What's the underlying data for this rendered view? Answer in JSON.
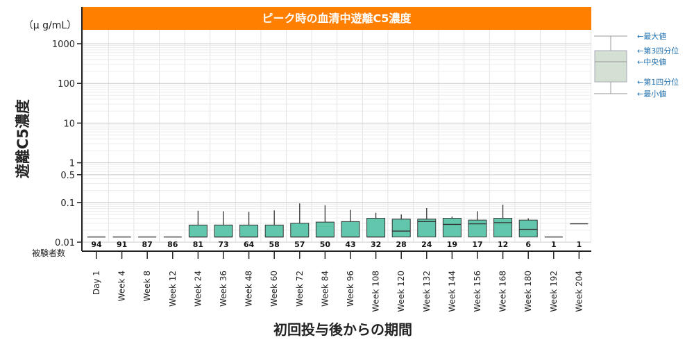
{
  "chart_data": {
    "type": "boxplot",
    "title": "ピーク時の血清中遊離C5濃度",
    "unit": "（μ g/mL）",
    "ylabel": "遊離C5濃度",
    "xlabel": "初回投与後からの期間",
    "y_scale": "log",
    "ylim": [
      0.01,
      3000
    ],
    "yticks": [
      {
        "value": 1000,
        "label": "1000"
      },
      {
        "value": 100,
        "label": "100"
      },
      {
        "value": 10,
        "label": "10"
      },
      {
        "value": 1,
        "label": "1"
      },
      {
        "value": 0.5,
        "label": "0.5"
      },
      {
        "value": 0.1,
        "label": "0.1"
      },
      {
        "value": 0.01,
        "label": "0.01"
      }
    ],
    "count_label": "被験者数",
    "categories": [
      "Day 1",
      "Week 4",
      "Week 8",
      "Week 12",
      "Week 24",
      "Week 36",
      "Week 48",
      "Week 60",
      "Week 72",
      "Week 84",
      "Week 96",
      "Week 108",
      "Week 120",
      "Week 132",
      "Week 144",
      "Week 156",
      "Week 168",
      "Week 180",
      "Week 192",
      "Week 204"
    ],
    "counts": [
      "94",
      "91",
      "87",
      "86",
      "81",
      "73",
      "64",
      "58",
      "57",
      "50",
      "43",
      "32",
      "28",
      "24",
      "19",
      "17",
      "12",
      "6",
      "1",
      "1"
    ],
    "boxes": [
      {
        "min": 0.0135,
        "q1": 0.0135,
        "median": 0.0135,
        "q3": 0.0135,
        "max": 0.0135
      },
      {
        "min": 0.0135,
        "q1": 0.0135,
        "median": 0.0135,
        "q3": 0.0135,
        "max": 0.0135
      },
      {
        "min": 0.0135,
        "q1": 0.0135,
        "median": 0.0135,
        "q3": 0.0135,
        "max": 0.0135
      },
      {
        "min": 0.0135,
        "q1": 0.0135,
        "median": 0.0135,
        "q3": 0.0135,
        "max": 0.0135
      },
      {
        "min": 0.0135,
        "q1": 0.0135,
        "median": 0.0135,
        "q3": 0.027,
        "max": 0.062
      },
      {
        "min": 0.0135,
        "q1": 0.0135,
        "median": 0.0135,
        "q3": 0.027,
        "max": 0.06
      },
      {
        "min": 0.0135,
        "q1": 0.0135,
        "median": 0.0135,
        "q3": 0.027,
        "max": 0.058
      },
      {
        "min": 0.0135,
        "q1": 0.0135,
        "median": 0.0135,
        "q3": 0.027,
        "max": 0.063
      },
      {
        "min": 0.0135,
        "q1": 0.0135,
        "median": 0.0135,
        "q3": 0.03,
        "max": 0.095
      },
      {
        "min": 0.0135,
        "q1": 0.0135,
        "median": 0.0135,
        "q3": 0.032,
        "max": 0.085
      },
      {
        "min": 0.0135,
        "q1": 0.0135,
        "median": 0.0135,
        "q3": 0.033,
        "max": 0.065
      },
      {
        "min": 0.0135,
        "q1": 0.0135,
        "median": 0.0135,
        "q3": 0.04,
        "max": 0.055
      },
      {
        "min": 0.0135,
        "q1": 0.0135,
        "median": 0.019,
        "q3": 0.038,
        "max": 0.05
      },
      {
        "min": 0.0135,
        "q1": 0.0135,
        "median": 0.033,
        "q3": 0.038,
        "max": 0.072
      },
      {
        "min": 0.0135,
        "q1": 0.0135,
        "median": 0.028,
        "q3": 0.04,
        "max": 0.044
      },
      {
        "min": 0.0135,
        "q1": 0.0135,
        "median": 0.029,
        "q3": 0.036,
        "max": 0.06
      },
      {
        "min": 0.0135,
        "q1": 0.0135,
        "median": 0.031,
        "q3": 0.04,
        "max": 0.088
      },
      {
        "min": 0.0135,
        "q1": 0.0135,
        "median": 0.021,
        "q3": 0.036,
        "max": 0.04
      },
      {
        "min": 0.0135,
        "q1": 0.0135,
        "median": 0.0135,
        "q3": 0.0135,
        "max": 0.0135
      },
      {
        "min": 0.029,
        "q1": 0.029,
        "median": 0.029,
        "q3": 0.029,
        "max": 0.029
      }
    ],
    "colors": {
      "title_bg": "#ff7f00",
      "box_fill": "#62c6ad",
      "legend_box_fill": "#d3e0d3",
      "grid": "#cccccc",
      "legend_text": "#1f6fae"
    },
    "legend": [
      {
        "key": "max",
        "label": "←最大値"
      },
      {
        "key": "q3",
        "label": "←第3四分位"
      },
      {
        "key": "median",
        "label": "←中央値"
      },
      {
        "key": "q1",
        "label": "←第1四分位"
      },
      {
        "key": "min",
        "label": "←最小値"
      }
    ]
  }
}
